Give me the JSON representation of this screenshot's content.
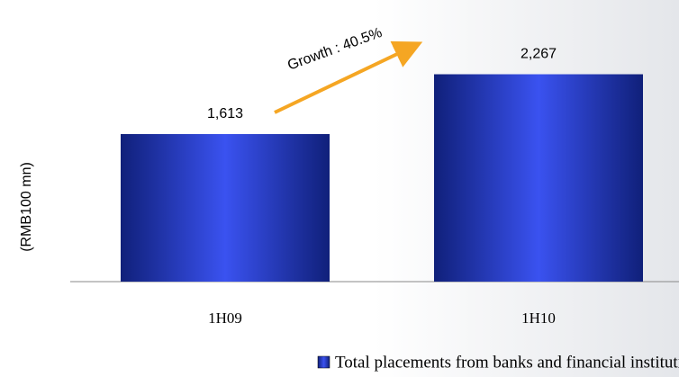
{
  "chart_data": {
    "type": "bar",
    "y_label": "(RMB100 mn)",
    "annotation": "Growth : 40.5%",
    "categories": [
      "1H09",
      "1H10"
    ],
    "series": [
      {
        "name": "Total placements from banks and financial institutions",
        "color": "#2a3fd6",
        "values": [
          1613,
          2267
        ],
        "value_labels": [
          "1,613",
          "2,267"
        ]
      }
    ],
    "ylim": [
      0,
      3000
    ]
  }
}
